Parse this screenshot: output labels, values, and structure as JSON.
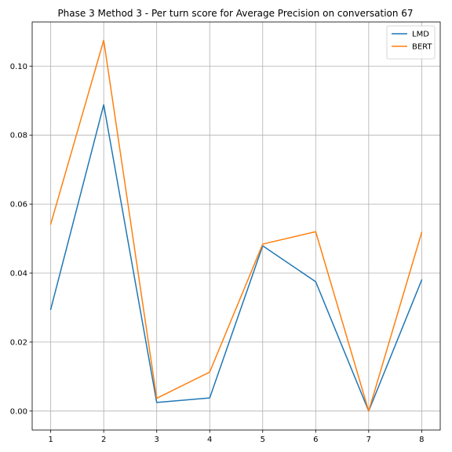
{
  "chart_data": {
    "type": "line",
    "title": "Phase 3 Method 3 - Per turn score for Average Precision on conversation 67",
    "xlabel": "",
    "ylabel": "",
    "x": [
      1,
      2,
      3,
      4,
      5,
      6,
      7,
      8
    ],
    "xticks": [
      "1",
      "2",
      "3",
      "4",
      "5",
      "6",
      "7",
      "8"
    ],
    "yticks": [
      "0.00",
      "0.02",
      "0.04",
      "0.06",
      "0.08",
      "0.10"
    ],
    "xlim": [
      0.65,
      8.35
    ],
    "ylim": [
      -0.0055,
      0.1128
    ],
    "grid": true,
    "legend_position": "top-right",
    "series": [
      {
        "name": "LMD",
        "color": "#1f77b4",
        "values": [
          0.0295,
          0.0888,
          0.0025,
          0.0038,
          0.0479,
          0.0375,
          0.0,
          0.038
        ]
      },
      {
        "name": "BERT",
        "color": "#ff7f0e",
        "values": [
          0.0542,
          0.1075,
          0.0037,
          0.0113,
          0.0484,
          0.052,
          0.0,
          0.0518
        ]
      }
    ]
  }
}
